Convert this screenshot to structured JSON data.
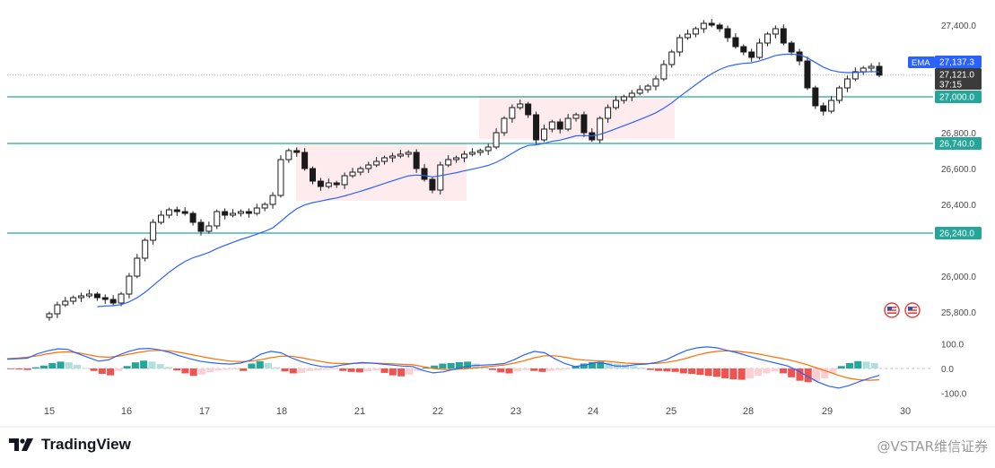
{
  "chart_data": {
    "type": "candlestick",
    "x_ticks": [
      "15",
      "16",
      "17",
      "18",
      "21",
      "22",
      "23",
      "24",
      "25",
      "28",
      "29",
      "30"
    ],
    "price_ticks": [
      "27,400.0",
      "26,800.0",
      "26,600.0",
      "26,400.0",
      "26,000.0",
      "25,800.0"
    ],
    "price_ylim": [
      25700,
      27500
    ],
    "horizontal_levels": [
      27000,
      26740,
      26240
    ],
    "level_labels": [
      "27,000.0",
      "26,740.0",
      "26,240.0"
    ],
    "current_price_line": 27121,
    "ema_label": "EMA",
    "ema_value": "27,137.3",
    "last_price": "27,121.0",
    "countdown": "37:15",
    "closes": [
      25790,
      25840,
      25860,
      25880,
      25890,
      25900,
      25880,
      25870,
      25850,
      25900,
      26000,
      26100,
      26200,
      26300,
      26340,
      26370,
      26360,
      26350,
      26300,
      26250,
      26280,
      26360,
      26340,
      26350,
      26360,
      26350,
      26380,
      26400,
      26450,
      26650,
      26700,
      26690,
      26600,
      26530,
      26500,
      26520,
      26510,
      26560,
      26580,
      26600,
      26620,
      26640,
      26660,
      26670,
      26680,
      26690,
      26600,
      26540,
      26480,
      26620,
      26650,
      26660,
      26680,
      26690,
      26700,
      26720,
      26800,
      26880,
      26940,
      26960,
      26900,
      26760,
      26820,
      26860,
      26820,
      26880,
      26900,
      26800,
      26760,
      26880,
      26940,
      26980,
      27000,
      27020,
      27040,
      27060,
      27100,
      27180,
      27250,
      27330,
      27350,
      27380,
      27410,
      27400,
      27380,
      27330,
      27280,
      27250,
      27220,
      27300,
      27350,
      27380,
      27300,
      27250,
      27200,
      27050,
      26950,
      26920,
      26980,
      27050,
      27100,
      27140,
      27160,
      27170,
      27121
    ],
    "macd_ylim": [
      -150,
      150
    ],
    "macd_ticks": [
      "100.0",
      "0.0",
      "-100.0"
    ],
    "macd_histogram": [
      -2,
      -4,
      -6,
      5,
      12,
      22,
      28,
      25,
      15,
      2,
      -10,
      -22,
      -28,
      -10,
      10,
      25,
      32,
      28,
      18,
      6,
      -8,
      -20,
      -30,
      -25,
      -15,
      -8,
      -5,
      -4,
      -10,
      20,
      30,
      22,
      5,
      -12,
      -20,
      -18,
      -10,
      -8,
      -6,
      -4,
      -10,
      -14,
      -16,
      -12,
      -8,
      -18,
      -28,
      -32,
      -25,
      -10,
      4,
      12,
      20,
      22,
      26,
      28,
      20,
      10,
      -6,
      -16,
      -20,
      -12,
      -6,
      -10,
      -14,
      -10,
      -6,
      -4,
      10,
      20,
      26,
      28,
      24,
      20,
      16,
      10,
      4,
      -6,
      -10,
      -12,
      -14,
      -20,
      -22,
      -26,
      -30,
      -34,
      -40,
      -44,
      -46,
      -40,
      -30,
      -20,
      -12,
      -20,
      -36,
      -50,
      -56,
      -52,
      -40,
      -20,
      10,
      22,
      30,
      28,
      22
    ],
    "macd_line": [
      38,
      40,
      42,
      60,
      72,
      80,
      78,
      60,
      45,
      30,
      35,
      55,
      70,
      80,
      82,
      76,
      66,
      52,
      40,
      30,
      24,
      20,
      18,
      22,
      34,
      58,
      70,
      64,
      44,
      28,
      16,
      8,
      6,
      14,
      20,
      24,
      22,
      18,
      14,
      10,
      8,
      -8,
      -18,
      -14,
      -4,
      6,
      12,
      14,
      16,
      20,
      36,
      56,
      70,
      64,
      40,
      20,
      8,
      14,
      24,
      20,
      10,
      10,
      16,
      18,
      24,
      36,
      56,
      74,
      84,
      88,
      84,
      74,
      64,
      52,
      40,
      30,
      20,
      10,
      -10,
      -34,
      -56,
      -72,
      -80,
      -70,
      -54,
      -40,
      -28
    ],
    "signal_line": [
      40,
      42,
      46,
      52,
      60,
      66,
      68,
      64,
      56,
      48,
      46,
      50,
      58,
      66,
      72,
      74,
      72,
      66,
      58,
      50,
      42,
      36,
      30,
      28,
      30,
      36,
      44,
      50,
      50,
      44,
      36,
      28,
      22,
      20,
      20,
      22,
      22,
      21,
      19,
      17,
      15,
      8,
      0,
      -4,
      -4,
      -2,
      2,
      6,
      10,
      14,
      22,
      32,
      44,
      52,
      52,
      46,
      38,
      34,
      32,
      30,
      26,
      22,
      20,
      20,
      21,
      25,
      32,
      42,
      54,
      64,
      70,
      72,
      70,
      66,
      60,
      52,
      44,
      36,
      26,
      14,
      0,
      -14,
      -28,
      -40,
      -46,
      -48,
      -46
    ]
  },
  "colors": {
    "up": "#26a69a",
    "down": "#ef5350",
    "candle": "#1a1a1a",
    "ema": "#2962ff",
    "macd": "#2962ff",
    "signal": "#ff6d00",
    "level_line": "#26a69a",
    "zone_fill": "#fde6e8"
  },
  "brand": {
    "logo_text": "TradingView"
  },
  "watermark": "@VSTAR维信证券"
}
